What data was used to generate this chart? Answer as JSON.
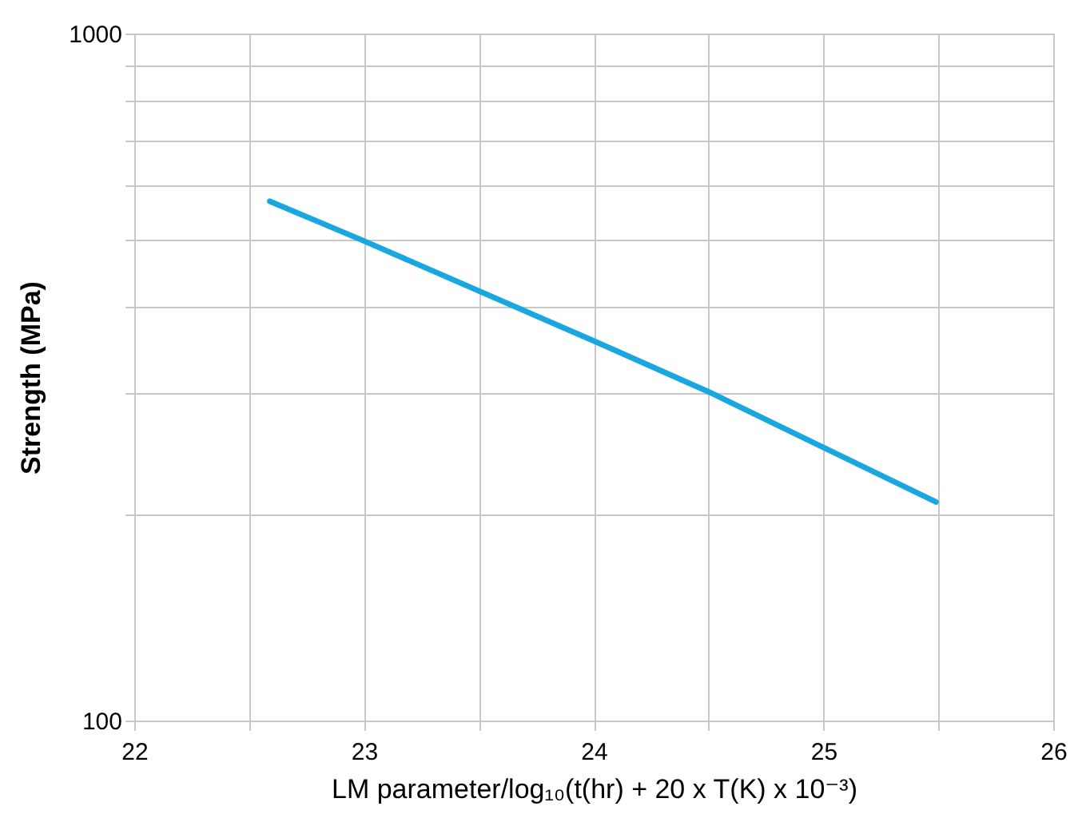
{
  "chart_data": {
    "type": "line",
    "xlabel": "LM parameter/log₁₀(t(hr) + 20 x T(K) x 10⁻³)",
    "ylabel": "Strength (MPa)",
    "x": [
      22.59,
      23.0,
      24.0,
      24.5,
      25.49
    ],
    "series": [
      {
        "color": "#1aa7e0",
        "values": [
          570,
          499,
          357,
          301,
          208
        ]
      }
    ],
    "xlim": [
      22,
      26
    ],
    "xticks": [
      22,
      {
        "value": 22.5,
        "label": null
      },
      23,
      {
        "value": 23.5,
        "label": null
      },
      24,
      {
        "value": 24.5,
        "label": null
      },
      25,
      {
        "value": 25.5,
        "label": null
      },
      26
    ],
    "ylim": [
      100,
      1000
    ],
    "yticks": [
      100,
      {
        "value": 200,
        "label": null
      },
      {
        "value": 300,
        "label": null
      },
      {
        "value": 400,
        "label": null
      },
      {
        "value": 500,
        "label": null
      },
      {
        "value": 600,
        "label": null
      },
      {
        "value": 700,
        "label": null
      },
      {
        "value": 800,
        "label": null
      },
      {
        "value": 900,
        "label": null
      },
      1000
    ],
    "log": "y",
    "grid": true,
    "marker": "none",
    "line_style": "solid"
  }
}
